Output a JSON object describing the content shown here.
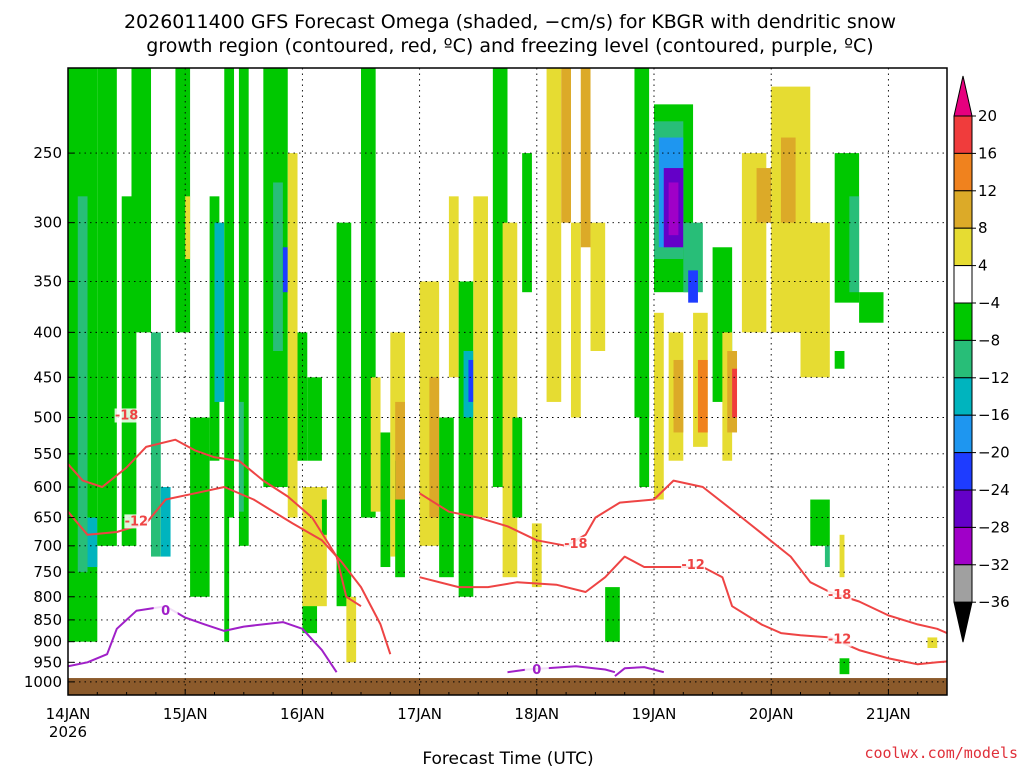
{
  "title_line1": "2026011400 GFS Forecast Omega (shaded, −cm/s) for KBGR with dendritic snow",
  "title_line2": "growth region (contoured, red, ºC) and freezing level (contoured, purple, ºC)",
  "credit": "coolwx.com/models",
  "chart_data": {
    "type": "heatmap",
    "title": "2026011400 GFS Forecast Omega (shaded, −cm/s) for KBGR with dendritic snow growth region (contoured, red, ºC) and freezing level (contoured, purple, ºC)",
    "xlabel": "Forecast Time (UTC)",
    "ylabel": "",
    "x_unit": "hours since 14JAN 00Z",
    "xlim": [
      0,
      180
    ],
    "x_ticks": [
      {
        "hour": 0,
        "label": "14JAN",
        "sub": "2026"
      },
      {
        "hour": 24,
        "label": "15JAN"
      },
      {
        "hour": 48,
        "label": "16JAN"
      },
      {
        "hour": 72,
        "label": "17JAN"
      },
      {
        "hour": 96,
        "label": "18JAN"
      },
      {
        "hour": 120,
        "label": "19JAN"
      },
      {
        "hour": 144,
        "label": "20JAN"
      },
      {
        "hour": 168,
        "label": "21JAN"
      }
    ],
    "y_ticks": [
      250,
      300,
      350,
      400,
      450,
      500,
      550,
      600,
      650,
      700,
      750,
      800,
      850,
      900,
      950,
      1000
    ],
    "ylim_hpa": [
      1035,
      200
    ],
    "grid": true,
    "colorbar": {
      "labels": [
        "20",
        "16",
        "12",
        "8",
        "4",
        "−4",
        "−8",
        "−12",
        "−16",
        "−20",
        "−24",
        "−28",
        "−32",
        "−36"
      ],
      "bins": [
        {
          "lo": 20,
          "hi": null,
          "color": "#e6007e",
          "shape": "triangle"
        },
        {
          "lo": 16,
          "hi": 20,
          "color": "#f03c3c"
        },
        {
          "lo": 12,
          "hi": 16,
          "color": "#f0821e"
        },
        {
          "lo": 8,
          "hi": 12,
          "color": "#dcaa28"
        },
        {
          "lo": 4,
          "hi": 8,
          "color": "#e6dc32"
        },
        {
          "lo": -4,
          "hi": 4,
          "color": "#ffffff"
        },
        {
          "lo": -8,
          "hi": -4,
          "color": "#00c800"
        },
        {
          "lo": -12,
          "hi": -8,
          "color": "#28be78"
        },
        {
          "lo": -16,
          "hi": -12,
          "color": "#00b4be"
        },
        {
          "lo": -20,
          "hi": -16,
          "color": "#1e96f0"
        },
        {
          "lo": -24,
          "hi": -20,
          "color": "#1e3cff"
        },
        {
          "lo": -28,
          "hi": -24,
          "color": "#6400c8"
        },
        {
          "lo": -32,
          "hi": -28,
          "color": "#a000c8"
        },
        {
          "lo": -36,
          "hi": -32,
          "color": "#a0a0a0"
        },
        {
          "lo": null,
          "hi": -36,
          "color": "#000000",
          "shape": "triangle"
        }
      ]
    },
    "omega_cells": [
      {
        "t0": 0,
        "t1": 6,
        "p0": 200,
        "p1": 900,
        "v": -6
      },
      {
        "t0": 2,
        "t1": 4,
        "p0": 280,
        "p1": 750,
        "v": -10
      },
      {
        "t0": 4,
        "t1": 6,
        "p0": 650,
        "p1": 740,
        "v": -14
      },
      {
        "t0": 6,
        "t1": 10,
        "p0": 200,
        "p1": 700,
        "v": -6
      },
      {
        "t0": 11,
        "t1": 14,
        "p0": 280,
        "p1": 700,
        "v": -7
      },
      {
        "t0": 13,
        "t1": 17,
        "p0": 200,
        "p1": 400,
        "v": -6
      },
      {
        "t0": 17,
        "t1": 19,
        "p0": 400,
        "p1": 720,
        "v": -9
      },
      {
        "t0": 19,
        "t1": 21,
        "p0": 600,
        "p1": 720,
        "v": -13
      },
      {
        "t0": 22,
        "t1": 25,
        "p0": 200,
        "p1": 400,
        "v": -6
      },
      {
        "t0": 24,
        "t1": 25,
        "p0": 280,
        "p1": 330,
        "v": 5
      },
      {
        "t0": 25,
        "t1": 29,
        "p0": 500,
        "p1": 800,
        "v": -6
      },
      {
        "t0": 29,
        "t1": 31,
        "p0": 280,
        "p1": 560,
        "v": -8
      },
      {
        "t0": 30,
        "t1": 32,
        "p0": 300,
        "p1": 480,
        "v": -14
      },
      {
        "t0": 32,
        "t1": 34,
        "p0": 200,
        "p1": 650,
        "v": -7
      },
      {
        "t0": 32,
        "t1": 33,
        "p0": 650,
        "p1": 900,
        "v": -6
      },
      {
        "t0": 35,
        "t1": 37,
        "p0": 200,
        "p1": 700,
        "v": -6
      },
      {
        "t0": 35,
        "t1": 36,
        "p0": 480,
        "p1": 640,
        "v": -10
      },
      {
        "t0": 40,
        "t1": 45,
        "p0": 200,
        "p1": 600,
        "v": -7
      },
      {
        "t0": 42,
        "t1": 44,
        "p0": 270,
        "p1": 420,
        "v": -10
      },
      {
        "t0": 44,
        "t1": 45,
        "p0": 320,
        "p1": 360,
        "v": -22
      },
      {
        "t0": 45,
        "t1": 47,
        "p0": 250,
        "p1": 650,
        "v": 5
      },
      {
        "t0": 47,
        "t1": 49,
        "p0": 400,
        "p1": 560,
        "v": -7
      },
      {
        "t0": 48,
        "t1": 51,
        "p0": 720,
        "p1": 880,
        "v": -6
      },
      {
        "t0": 48,
        "t1": 53,
        "p0": 600,
        "p1": 820,
        "v": 5
      },
      {
        "t0": 49,
        "t1": 52,
        "p0": 450,
        "p1": 560,
        "v": -7
      },
      {
        "t0": 52,
        "t1": 53,
        "p0": 620,
        "p1": 680,
        "v": -6
      },
      {
        "t0": 55,
        "t1": 58,
        "p0": 300,
        "p1": 820,
        "v": -6
      },
      {
        "t0": 57,
        "t1": 59,
        "p0": 800,
        "p1": 950,
        "v": 5
      },
      {
        "t0": 60,
        "t1": 63,
        "p0": 200,
        "p1": 650,
        "v": -6
      },
      {
        "t0": 62,
        "t1": 64,
        "p0": 450,
        "p1": 640,
        "v": 5
      },
      {
        "t0": 64,
        "t1": 66,
        "p0": 520,
        "p1": 740,
        "v": -6
      },
      {
        "t0": 66,
        "t1": 69,
        "p0": 400,
        "p1": 720,
        "v": 5
      },
      {
        "t0": 67,
        "t1": 69,
        "p0": 560,
        "p1": 760,
        "v": -7
      },
      {
        "t0": 67,
        "t1": 69,
        "p0": 480,
        "p1": 620,
        "v": 10
      },
      {
        "t0": 72,
        "t1": 76,
        "p0": 350,
        "p1": 700,
        "v": 5
      },
      {
        "t0": 74,
        "t1": 76,
        "p0": 450,
        "p1": 650,
        "v": 9
      },
      {
        "t0": 76,
        "t1": 79,
        "p0": 500,
        "p1": 760,
        "v": -6
      },
      {
        "t0": 78,
        "t1": 80,
        "p0": 280,
        "p1": 450,
        "v": 5
      },
      {
        "t0": 80,
        "t1": 83,
        "p0": 350,
        "p1": 800,
        "v": -7
      },
      {
        "t0": 81,
        "t1": 83,
        "p0": 420,
        "p1": 500,
        "v": -16
      },
      {
        "t0": 82,
        "t1": 83,
        "p0": 430,
        "p1": 480,
        "v": -22
      },
      {
        "t0": 83,
        "t1": 86,
        "p0": 280,
        "p1": 650,
        "v": 5
      },
      {
        "t0": 87,
        "t1": 90,
        "p0": 200,
        "p1": 600,
        "v": -6
      },
      {
        "t0": 89,
        "t1": 92,
        "p0": 300,
        "p1": 760,
        "v": 5
      },
      {
        "t0": 91,
        "t1": 93,
        "p0": 500,
        "p1": 650,
        "v": -6
      },
      {
        "t0": 93,
        "t1": 95,
        "p0": 250,
        "p1": 360,
        "v": -6
      },
      {
        "t0": 95,
        "t1": 97,
        "p0": 660,
        "p1": 780,
        "v": 5
      },
      {
        "t0": 98,
        "t1": 101,
        "p0": 200,
        "p1": 480,
        "v": 5
      },
      {
        "t0": 101,
        "t1": 103,
        "p0": 200,
        "p1": 300,
        "v": 9
      },
      {
        "t0": 103,
        "t1": 105,
        "p0": 300,
        "p1": 500,
        "v": 5
      },
      {
        "t0": 105,
        "t1": 107,
        "p0": 200,
        "p1": 320,
        "v": 9
      },
      {
        "t0": 107,
        "t1": 110,
        "p0": 300,
        "p1": 420,
        "v": 5
      },
      {
        "t0": 110,
        "t1": 113,
        "p0": 780,
        "p1": 900,
        "v": -6
      },
      {
        "t0": 116,
        "t1": 119,
        "p0": 200,
        "p1": 500,
        "v": -6
      },
      {
        "t0": 117,
        "t1": 119,
        "p0": 450,
        "p1": 600,
        "v": -6
      },
      {
        "t0": 120,
        "t1": 122,
        "p0": 380,
        "p1": 620,
        "v": 5
      },
      {
        "t0": 120,
        "t1": 128,
        "p0": 220,
        "p1": 360,
        "v": -7
      },
      {
        "t0": 120,
        "t1": 126,
        "p0": 230,
        "p1": 330,
        "v": -12
      },
      {
        "t0": 121,
        "t1": 126,
        "p0": 240,
        "p1": 320,
        "v": -18
      },
      {
        "t0": 122,
        "t1": 126,
        "p0": 260,
        "p1": 320,
        "v": -26
      },
      {
        "t0": 123,
        "t1": 125,
        "p0": 270,
        "p1": 310,
        "v": -30
      },
      {
        "t0": 123,
        "t1": 126,
        "p0": 400,
        "p1": 560,
        "v": 5
      },
      {
        "t0": 124,
        "t1": 126,
        "p0": 430,
        "p1": 520,
        "v": 11
      },
      {
        "t0": 126,
        "t1": 130,
        "p0": 300,
        "p1": 360,
        "v": -10
      },
      {
        "t0": 127,
        "t1": 129,
        "p0": 340,
        "p1": 370,
        "v": -22
      },
      {
        "t0": 128,
        "t1": 131,
        "p0": 380,
        "p1": 540,
        "v": 5
      },
      {
        "t0": 129,
        "t1": 131,
        "p0": 430,
        "p1": 520,
        "v": 13
      },
      {
        "t0": 132,
        "t1": 136,
        "p0": 320,
        "p1": 480,
        "v": -6
      },
      {
        "t0": 134,
        "t1": 136,
        "p0": 400,
        "p1": 560,
        "v": 5
      },
      {
        "t0": 135,
        "t1": 137,
        "p0": 420,
        "p1": 520,
        "v": 10
      },
      {
        "t0": 136,
        "t1": 137,
        "p0": 440,
        "p1": 500,
        "v": 18
      },
      {
        "t0": 138,
        "t1": 143,
        "p0": 250,
        "p1": 400,
        "v": 5
      },
      {
        "t0": 141,
        "t1": 144,
        "p0": 260,
        "p1": 300,
        "v": 9
      },
      {
        "t0": 144,
        "t1": 152,
        "p0": 210,
        "p1": 400,
        "v": 5
      },
      {
        "t0": 146,
        "t1": 149,
        "p0": 240,
        "p1": 300,
        "v": 9
      },
      {
        "t0": 150,
        "t1": 156,
        "p0": 300,
        "p1": 450,
        "v": 5
      },
      {
        "t0": 152,
        "t1": 156,
        "p0": 620,
        "p1": 700,
        "v": -6
      },
      {
        "t0": 155,
        "t1": 156,
        "p0": 700,
        "p1": 740,
        "v": -12
      },
      {
        "t0": 157,
        "t1": 162,
        "p0": 250,
        "p1": 370,
        "v": -6
      },
      {
        "t0": 160,
        "t1": 162,
        "p0": 280,
        "p1": 360,
        "v": -10
      },
      {
        "t0": 162,
        "t1": 167,
        "p0": 360,
        "p1": 390,
        "v": -6
      },
      {
        "t0": 157,
        "t1": 159,
        "p0": 420,
        "p1": 440,
        "v": -6
      },
      {
        "t0": 158,
        "t1": 159,
        "p0": 680,
        "p1": 760,
        "v": 5
      },
      {
        "t0": 158,
        "t1": 160,
        "p0": 940,
        "p1": 980,
        "v": -6
      },
      {
        "t0": 176,
        "t1": 178,
        "p0": 890,
        "p1": 915,
        "v": 5
      }
    ],
    "dgz_contours_degC": [
      {
        "label": "-18",
        "label_at": [
          12,
          500
        ],
        "points": [
          [
            0,
            565
          ],
          [
            3,
            590
          ],
          [
            7,
            600
          ],
          [
            12,
            570
          ],
          [
            16,
            540
          ],
          [
            22,
            530
          ],
          [
            26,
            545
          ],
          [
            30,
            555
          ],
          [
            35,
            560
          ],
          [
            40,
            590
          ],
          [
            45,
            615
          ],
          [
            50,
            650
          ],
          [
            55,
            720
          ],
          [
            57,
            800
          ],
          [
            60,
            820
          ]
        ]
      },
      {
        "label": "-12",
        "label_at": [
          14,
          660
        ],
        "points": [
          [
            0,
            640
          ],
          [
            4,
            680
          ],
          [
            10,
            675
          ],
          [
            16,
            660
          ],
          [
            20,
            620
          ],
          [
            26,
            610
          ],
          [
            32,
            600
          ],
          [
            38,
            620
          ],
          [
            46,
            660
          ],
          [
            52,
            690
          ],
          [
            56,
            730
          ],
          [
            60,
            780
          ],
          [
            64,
            860
          ],
          [
            66,
            930
          ]
        ]
      },
      {
        "label": "-18",
        "label_at": [
          104,
          700
        ],
        "points": [
          [
            72,
            610
          ],
          [
            78,
            640
          ],
          [
            84,
            650
          ],
          [
            90,
            665
          ],
          [
            96,
            690
          ],
          [
            102,
            700
          ],
          [
            106,
            680
          ],
          [
            108,
            650
          ],
          [
            113,
            625
          ],
          [
            120,
            620
          ],
          [
            124,
            590
          ],
          [
            130,
            600
          ],
          [
            138,
            650
          ],
          [
            148,
            720
          ],
          [
            152,
            770
          ],
          [
            156,
            790
          ]
        ]
      },
      {
        "label": "-12",
        "label_at": [
          128,
          740
        ],
        "points": [
          [
            72,
            760
          ],
          [
            80,
            780
          ],
          [
            86,
            780
          ],
          [
            92,
            770
          ],
          [
            100,
            775
          ],
          [
            106,
            790
          ],
          [
            110,
            760
          ],
          [
            114,
            720
          ],
          [
            118,
            740
          ],
          [
            124,
            740
          ],
          [
            130,
            740
          ],
          [
            134,
            760
          ],
          [
            136,
            820
          ],
          [
            142,
            860
          ],
          [
            146,
            880
          ],
          [
            150,
            885
          ],
          [
            156,
            890
          ]
        ]
      },
      {
        "label": "-18",
        "label_at": [
          158,
          800
        ],
        "points": [
          [
            156,
            790
          ],
          [
            162,
            810
          ],
          [
            168,
            840
          ],
          [
            174,
            860
          ],
          [
            178,
            870
          ],
          [
            180,
            880
          ]
        ]
      },
      {
        "label": "-12",
        "label_at": [
          158,
          900
        ],
        "points": [
          [
            156,
            890
          ],
          [
            162,
            920
          ],
          [
            168,
            940
          ],
          [
            174,
            955
          ],
          [
            178,
            950
          ],
          [
            180,
            948
          ]
        ]
      }
    ],
    "freezing_contours_degC": [
      {
        "label": "0",
        "label_at": [
          20,
          835
        ],
        "points": [
          [
            0,
            960
          ],
          [
            4,
            950
          ],
          [
            8,
            930
          ],
          [
            10,
            870
          ],
          [
            14,
            830
          ],
          [
            20,
            820
          ],
          [
            24,
            845
          ],
          [
            28,
            860
          ],
          [
            32,
            875
          ],
          [
            36,
            865
          ],
          [
            44,
            855
          ],
          [
            48,
            870
          ],
          [
            52,
            920
          ],
          [
            55,
            975
          ]
        ]
      },
      {
        "label": "0",
        "label_at": [
          96,
          975
        ],
        "points": [
          [
            90,
            975
          ],
          [
            94,
            968
          ],
          [
            98,
            965
          ],
          [
            104,
            960
          ],
          [
            110,
            968
          ],
          [
            112,
            975
          ]
        ]
      },
      {
        "label": "",
        "label_at": null,
        "points": [
          [
            112,
            985
          ],
          [
            114,
            965
          ],
          [
            118,
            962
          ],
          [
            122,
            975
          ]
        ]
      }
    ],
    "ground": {
      "color": "#8b5a2b",
      "surface_hpa": 990
    }
  }
}
